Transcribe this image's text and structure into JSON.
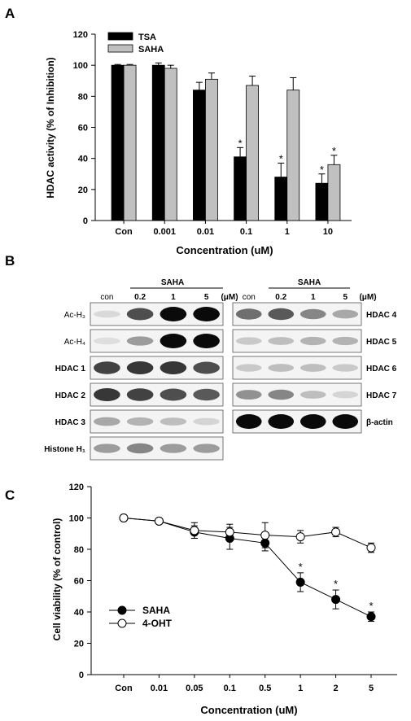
{
  "panel_a": {
    "letter": "A",
    "chart_data": {
      "type": "bar",
      "categories": [
        "Con",
        "0.001",
        "0.01",
        "0.1",
        "1",
        "10"
      ],
      "series": [
        {
          "name": "TSA",
          "color": "#000000",
          "values": [
            100,
            100,
            84,
            41,
            28,
            24
          ],
          "errors": [
            0.5,
            1.5,
            5,
            6,
            9,
            6
          ],
          "significant": [
            false,
            false,
            false,
            true,
            true,
            true
          ]
        },
        {
          "name": "SAHA",
          "color": "#c0c0c0",
          "values": [
            100,
            98,
            91,
            87,
            84,
            36
          ],
          "errors": [
            0.5,
            2,
            4,
            6,
            8,
            6
          ],
          "significant": [
            false,
            false,
            false,
            false,
            false,
            true
          ]
        }
      ],
      "xlabel": "Concentration (uM)",
      "ylabel": "HDAC activity (% of Inhibition)",
      "ylim": [
        0,
        120
      ],
      "yticks": [
        "0",
        "20",
        "40",
        "60",
        "80",
        "100",
        "120"
      ],
      "legend": "top-left",
      "significance_mark": "*"
    }
  },
  "panel_b": {
    "letter": "B",
    "left_blot": {
      "treatment": "SAHA",
      "lanes": [
        "con",
        "0.2",
        "1",
        "5"
      ],
      "unit": "(μM)",
      "rows": [
        {
          "label": "Ac-H₃",
          "intensity": [
            0.08,
            0.7,
            1.0,
            1.0
          ]
        },
        {
          "label": "Ac-H₄",
          "intensity": [
            0.06,
            0.35,
            1.0,
            1.0
          ]
        },
        {
          "label": "HDAC 1",
          "intensity": [
            0.75,
            0.8,
            0.8,
            0.7
          ]
        },
        {
          "label": "HDAC 2",
          "intensity": [
            0.8,
            0.75,
            0.7,
            0.65
          ]
        },
        {
          "label": "HDAC 3",
          "intensity": [
            0.3,
            0.25,
            0.2,
            0.1
          ]
        },
        {
          "label": "Histone H₁",
          "intensity": [
            0.35,
            0.45,
            0.35,
            0.35
          ]
        }
      ]
    },
    "right_blot": {
      "treatment": "SAHA",
      "lanes": [
        "con",
        "0.2",
        "1",
        "5"
      ],
      "unit": "(μM)",
      "rows": [
        {
          "label": "HDAC 4",
          "intensity": [
            0.55,
            0.65,
            0.45,
            0.3
          ]
        },
        {
          "label": "HDAC 5",
          "intensity": [
            0.15,
            0.2,
            0.25,
            0.25
          ]
        },
        {
          "label": "HDAC 6",
          "intensity": [
            0.15,
            0.2,
            0.2,
            0.15
          ]
        },
        {
          "label": "HDAC 7",
          "intensity": [
            0.4,
            0.45,
            0.2,
            0.1
          ]
        },
        {
          "label": "β-actin",
          "intensity": [
            1.0,
            1.0,
            1.0,
            1.0
          ]
        }
      ]
    }
  },
  "panel_c": {
    "letter": "C",
    "chart_data": {
      "type": "line",
      "categories": [
        "Con",
        "0.01",
        "0.05",
        "0.1",
        "0.5",
        "1",
        "2",
        "5"
      ],
      "series": [
        {
          "name": "SAHA",
          "marker": "filled-circle",
          "values": [
            100,
            98,
            91,
            87,
            84,
            59,
            48,
            37
          ],
          "errors": [
            1,
            1,
            4,
            7,
            5,
            6,
            6,
            3
          ],
          "significant": [
            false,
            false,
            false,
            false,
            false,
            true,
            true,
            true
          ]
        },
        {
          "name": "4-OHT",
          "marker": "open-circle",
          "values": [
            100,
            98,
            92,
            91,
            89,
            88,
            91,
            81
          ],
          "errors": [
            1,
            1,
            5,
            5,
            8,
            4,
            3,
            3
          ],
          "significant": [
            false,
            false,
            false,
            false,
            false,
            false,
            false,
            false
          ]
        }
      ],
      "xlabel": "Concentration (uM)",
      "ylabel": "Cell viability (% of control)",
      "ylim": [
        0,
        120
      ],
      "yticks": [
        "0",
        "20",
        "40",
        "60",
        "80",
        "100",
        "120"
      ],
      "legend": "bottom-left",
      "significance_mark": "*"
    }
  }
}
